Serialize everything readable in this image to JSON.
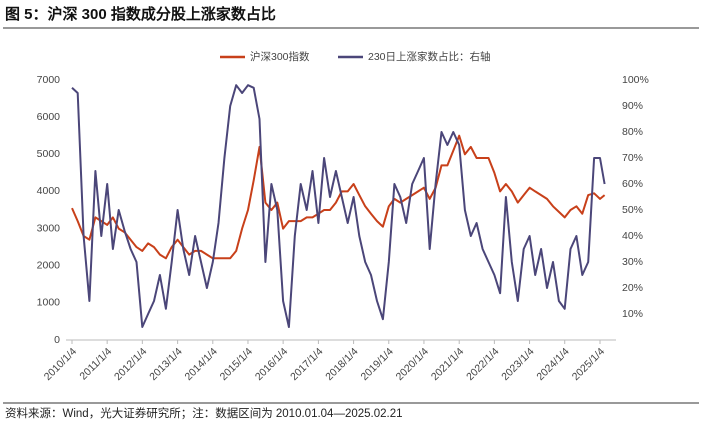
{
  "chart_data": {
    "type": "line",
    "title": "图 5：沪深 300 指数成分股上涨家数占比",
    "source": "资料来源：Wind，光大证券研究所；注：数据区间为 2010.01.04—2025.02.21",
    "x": [
      "2010/1/4",
      "2010/3/4",
      "2010/5/4",
      "2010/7/4",
      "2010/9/4",
      "2010/11/4",
      "2011/1/4",
      "2011/3/4",
      "2011/5/4",
      "2011/7/4",
      "2011/9/4",
      "2011/11/4",
      "2012/1/4",
      "2012/3/4",
      "2012/5/4",
      "2012/7/4",
      "2012/9/4",
      "2012/11/4",
      "2013/1/4",
      "2013/3/4",
      "2013/5/4",
      "2013/7/4",
      "2013/9/4",
      "2013/11/4",
      "2014/1/4",
      "2014/3/4",
      "2014/5/4",
      "2014/7/4",
      "2014/9/4",
      "2014/11/4",
      "2015/1/4",
      "2015/3/4",
      "2015/5/4",
      "2015/7/4",
      "2015/9/4",
      "2015/11/4",
      "2016/1/4",
      "2016/3/4",
      "2016/5/4",
      "2016/7/4",
      "2016/9/4",
      "2016/11/4",
      "2017/1/4",
      "2017/3/4",
      "2017/5/4",
      "2017/7/4",
      "2017/9/4",
      "2017/11/4",
      "2018/1/4",
      "2018/3/4",
      "2018/5/4",
      "2018/7/4",
      "2018/9/4",
      "2018/11/4",
      "2019/1/4",
      "2019/3/4",
      "2019/5/4",
      "2019/7/4",
      "2019/9/4",
      "2019/11/4",
      "2020/1/4",
      "2020/3/4",
      "2020/5/4",
      "2020/7/4",
      "2020/9/4",
      "2020/11/4",
      "2021/1/4",
      "2021/3/4",
      "2021/5/4",
      "2021/7/4",
      "2021/9/4",
      "2021/11/4",
      "2022/1/4",
      "2022/3/4",
      "2022/5/4",
      "2022/7/4",
      "2022/9/4",
      "2022/11/4",
      "2023/1/4",
      "2023/3/4",
      "2023/5/4",
      "2023/7/4",
      "2023/9/4",
      "2023/11/4",
      "2024/1/4",
      "2024/3/4",
      "2024/5/4",
      "2024/7/4",
      "2024/9/4",
      "2024/11/4",
      "2025/1/4",
      "2025/2/21"
    ],
    "series": [
      {
        "name": "沪深300指数",
        "color": "#c8401a",
        "values": [
          3550,
          3200,
          2800,
          2700,
          3300,
          3200,
          3100,
          3300,
          3000,
          2900,
          2700,
          2500,
          2400,
          2600,
          2500,
          2300,
          2200,
          2500,
          2700,
          2500,
          2300,
          2400,
          2400,
          2300,
          2200,
          2200,
          2200,
          2200,
          2400,
          3000,
          3500,
          4300,
          5200,
          3700,
          3500,
          3700,
          3000,
          3200,
          3200,
          3200,
          3300,
          3300,
          3400,
          3500,
          3500,
          3700,
          4000,
          4000,
          4200,
          3900,
          3600,
          3400,
          3200,
          3050,
          3600,
          3800,
          3700,
          3800,
          3900,
          4000,
          4100,
          3800,
          4100,
          4700,
          4700,
          5100,
          5500,
          5000,
          5200,
          4900,
          4900,
          4900,
          4500,
          4000,
          4200,
          4000,
          3700,
          3900,
          4100,
          4000,
          3900,
          3800,
          3600,
          3450,
          3300,
          3500,
          3600,
          3400,
          3900,
          3950,
          3800,
          3900
        ]
      },
      {
        "name": "230日上涨家数占比：右轴",
        "color": "#4b4679",
        "axis": "y2",
        "values": [
          97,
          95,
          40,
          15,
          65,
          40,
          60,
          35,
          50,
          42,
          35,
          30,
          5,
          10,
          15,
          25,
          12,
          30,
          50,
          35,
          25,
          40,
          30,
          20,
          30,
          45,
          70,
          90,
          98,
          95,
          98,
          97,
          85,
          30,
          60,
          50,
          15,
          5,
          40,
          60,
          50,
          65,
          45,
          70,
          55,
          65,
          55,
          45,
          55,
          40,
          30,
          25,
          15,
          8,
          30,
          60,
          55,
          45,
          60,
          65,
          70,
          35,
          60,
          80,
          75,
          80,
          75,
          50,
          40,
          45,
          35,
          30,
          25,
          18,
          55,
          30,
          15,
          35,
          40,
          25,
          35,
          20,
          30,
          15,
          12,
          35,
          40,
          25,
          30,
          70,
          70,
          60
        ]
      }
    ],
    "xticks": [
      "2010/1/4",
      "2011/1/4",
      "2012/1/4",
      "2013/1/4",
      "2014/1/4",
      "2015/1/4",
      "2016/1/4",
      "2017/1/4",
      "2018/1/4",
      "2019/1/4",
      "2020/1/4",
      "2021/1/4",
      "2022/1/4",
      "2023/1/4",
      "2024/1/4",
      "2025/1/4"
    ],
    "ylim": [
      0,
      7000
    ],
    "yticks": [
      0,
      1000,
      2000,
      3000,
      4000,
      5000,
      6000,
      7000
    ],
    "y2lim": [
      0,
      100
    ],
    "y2ticks": [
      {
        "value": 10,
        "label": "10%"
      },
      {
        "value": 20,
        "label": "20%"
      },
      {
        "value": 30,
        "label": "30%"
      },
      {
        "value": 40,
        "label": "40%"
      },
      {
        "value": 50,
        "label": "50%"
      },
      {
        "value": 60,
        "label": "60%"
      },
      {
        "value": 70,
        "label": "70%"
      },
      {
        "value": 80,
        "label": "80%"
      },
      {
        "value": 90,
        "label": "90%"
      },
      {
        "value": 100,
        "label": "100%"
      }
    ],
    "legend": "top"
  }
}
